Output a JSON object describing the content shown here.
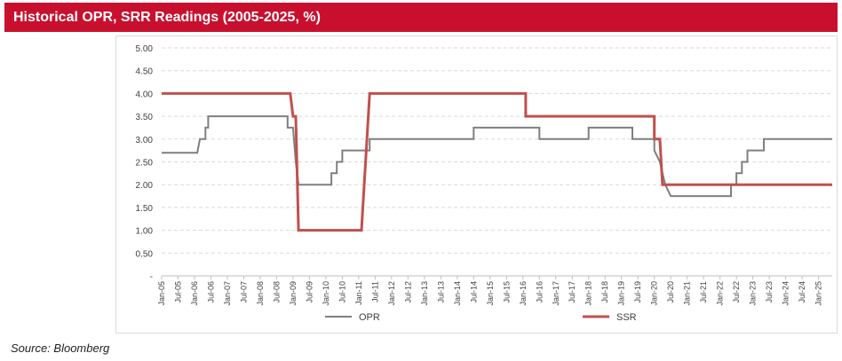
{
  "header": {
    "title": "Historical OPR, SRR Readings (2005-2025, %)",
    "color": "#c8102e"
  },
  "footer": {
    "source": "Source: Bloomberg"
  },
  "chart_data": {
    "type": "line",
    "title": "Historical OPR, SRR Readings (2005-2025, %)",
    "xlabel": "",
    "ylabel": "",
    "x_ticks": [
      "Jan-05",
      "Jul-05",
      "Jan-06",
      "Jul-06",
      "Jan-07",
      "Jul-07",
      "Jan-08",
      "Jul-08",
      "Jan-09",
      "Jul-09",
      "Jan-10",
      "Jul-10",
      "Jan-11",
      "Jul-11",
      "Jan-12",
      "Jul-12",
      "Jan-13",
      "Jul-13",
      "Jan-14",
      "Jul-14",
      "Jan-15",
      "Jul-15",
      "Jan-16",
      "Jul-16",
      "Jan-17",
      "Jul-17",
      "Jan-18",
      "Jul-18",
      "Jan-19",
      "Jul-19",
      "Jan-20",
      "Jul-20",
      "Jan-21",
      "Jul-21",
      "Jan-22",
      "Jul-22",
      "Jan-23",
      "Jul-23",
      "Jan-24",
      "Jul-24",
      "Jan-25"
    ],
    "y_ticks": [
      "-",
      "0.50",
      "1.00",
      "1.50",
      "2.00",
      "2.50",
      "3.00",
      "3.50",
      "4.00",
      "4.50",
      "5.00"
    ],
    "ylim": [
      0,
      5
    ],
    "grid": true,
    "legend_position": "bottom",
    "series": [
      {
        "name": "OPR",
        "color": "#7f7f7f",
        "points": [
          [
            "2005-01",
            2.7
          ],
          [
            "2006-02",
            2.7
          ],
          [
            "2006-03",
            3.0
          ],
          [
            "2006-05",
            3.0
          ],
          [
            "2006-05",
            3.25
          ],
          [
            "2006-06",
            3.25
          ],
          [
            "2006-06",
            3.5
          ],
          [
            "2008-11",
            3.5
          ],
          [
            "2008-11",
            3.25
          ],
          [
            "2009-01",
            3.25
          ],
          [
            "2009-02",
            2.5
          ],
          [
            "2009-03",
            2.0
          ],
          [
            "2010-03",
            2.0
          ],
          [
            "2010-03",
            2.25
          ],
          [
            "2010-05",
            2.25
          ],
          [
            "2010-05",
            2.5
          ],
          [
            "2010-07",
            2.5
          ],
          [
            "2010-07",
            2.75
          ],
          [
            "2011-05",
            2.75
          ],
          [
            "2011-05",
            3.0
          ],
          [
            "2014-07",
            3.0
          ],
          [
            "2014-07",
            3.25
          ],
          [
            "2016-07",
            3.25
          ],
          [
            "2016-07",
            3.0
          ],
          [
            "2018-01",
            3.0
          ],
          [
            "2018-01",
            3.25
          ],
          [
            "2019-05",
            3.25
          ],
          [
            "2019-05",
            3.0
          ],
          [
            "2020-01",
            3.0
          ],
          [
            "2020-01",
            2.75
          ],
          [
            "2020-03",
            2.5
          ],
          [
            "2020-05",
            2.0
          ],
          [
            "2020-07",
            1.75
          ],
          [
            "2022-05",
            1.75
          ],
          [
            "2022-05",
            2.0
          ],
          [
            "2022-07",
            2.0
          ],
          [
            "2022-07",
            2.25
          ],
          [
            "2022-09",
            2.25
          ],
          [
            "2022-09",
            2.5
          ],
          [
            "2022-11",
            2.5
          ],
          [
            "2022-11",
            2.75
          ],
          [
            "2023-05",
            2.75
          ],
          [
            "2023-05",
            3.0
          ],
          [
            "2025-06",
            3.0
          ]
        ]
      },
      {
        "name": "SSR",
        "color": "#c0504d",
        "points": [
          [
            "2005-01",
            4.0
          ],
          [
            "2008-12",
            4.0
          ],
          [
            "2009-01",
            3.5
          ],
          [
            "2009-02",
            3.5
          ],
          [
            "2009-03",
            1.0
          ],
          [
            "2011-02",
            1.0
          ],
          [
            "2011-05",
            4.0
          ],
          [
            "2016-02",
            4.0
          ],
          [
            "2016-02",
            3.5
          ],
          [
            "2020-01",
            3.5
          ],
          [
            "2020-01",
            3.0
          ],
          [
            "2020-03",
            3.0
          ],
          [
            "2020-04",
            2.0
          ],
          [
            "2025-06",
            2.0
          ]
        ]
      }
    ]
  }
}
